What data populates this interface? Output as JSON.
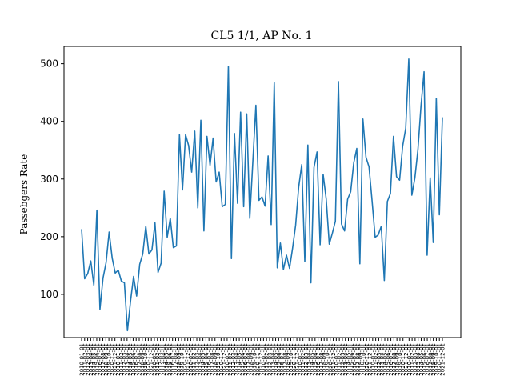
{
  "chart_data": {
    "type": "line",
    "title": "CL5 1/1, AP No. 1",
    "xlabel": "",
    "ylabel": "Passebgers Rate",
    "ylim": [
      25,
      530
    ],
    "yticks": [
      100,
      200,
      300,
      400,
      500
    ],
    "grid": false,
    "legend": "none",
    "color": "#1f77b4",
    "x_ticks_count": 120,
    "series": [
      {
        "values": [
          213,
          127,
          136,
          158,
          116,
          246,
          74,
          128,
          155,
          208,
          163,
          137,
          142,
          123,
          120,
          37,
          88,
          131,
          97,
          152,
          170,
          218,
          170,
          177,
          224,
          138,
          154,
          279,
          199,
          232,
          181,
          184,
          377,
          281,
          377,
          358,
          312,
          383,
          250,
          402,
          210,
          374,
          324,
          371,
          295,
          312,
          252,
          256,
          495,
          162,
          379,
          258,
          416,
          252,
          413,
          232,
          330,
          428,
          263,
          269,
          253,
          340,
          221,
          467,
          146,
          189,
          143,
          168,
          145,
          180,
          220,
          286,
          325,
          157,
          359,
          120,
          320,
          347,
          186,
          308,
          265,
          187,
          206,
          227,
          469,
          222,
          210,
          265,
          278,
          328,
          353,
          153,
          404,
          338,
          321,
          262,
          199,
          203,
          218,
          124,
          261,
          275,
          374,
          304,
          298,
          357,
          388,
          508,
          272,
          302,
          351,
          427,
          486,
          168,
          302,
          190,
          440,
          238,
          407
        ]
      }
    ]
  }
}
